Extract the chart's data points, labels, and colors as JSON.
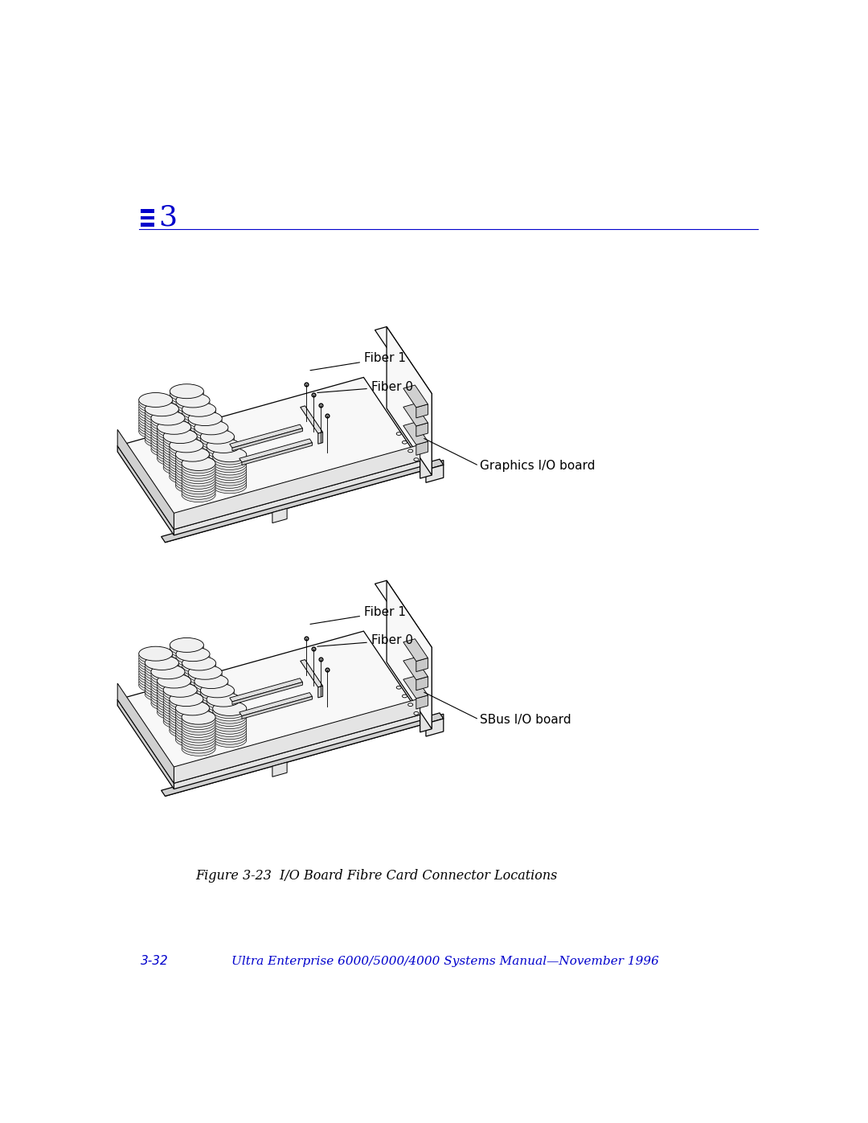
{
  "background_color": "#ffffff",
  "chapter_marker_color": "#0000cc",
  "chapter_number": "3",
  "chapter_line_color": "#0000cc",
  "figure_caption": "Figure 3-23  I/O Board Fibre Card Connector Locations",
  "footer_left": "3-32",
  "footer_center": "Ultra Enterprise 6000/5000/4000 Systems Manual—November 1996",
  "footer_color": "#0000cc",
  "label_color": "#000000",
  "diagram_line_color": "#000000",
  "top_board_labels": [
    "Fiber 1",
    "Fiber 0",
    "Graphics I/O board"
  ],
  "bottom_board_labels": [
    "Fiber 1",
    "Fiber 0",
    "SBus I/O board"
  ],
  "line_color": "#000000",
  "board_face_color": "#f8f8f8",
  "board_side_color": "#e4e4e4",
  "board_dark_color": "#d0d0d0",
  "circle_color": "#e8e8e8",
  "connector_color": "#e0e0e0"
}
